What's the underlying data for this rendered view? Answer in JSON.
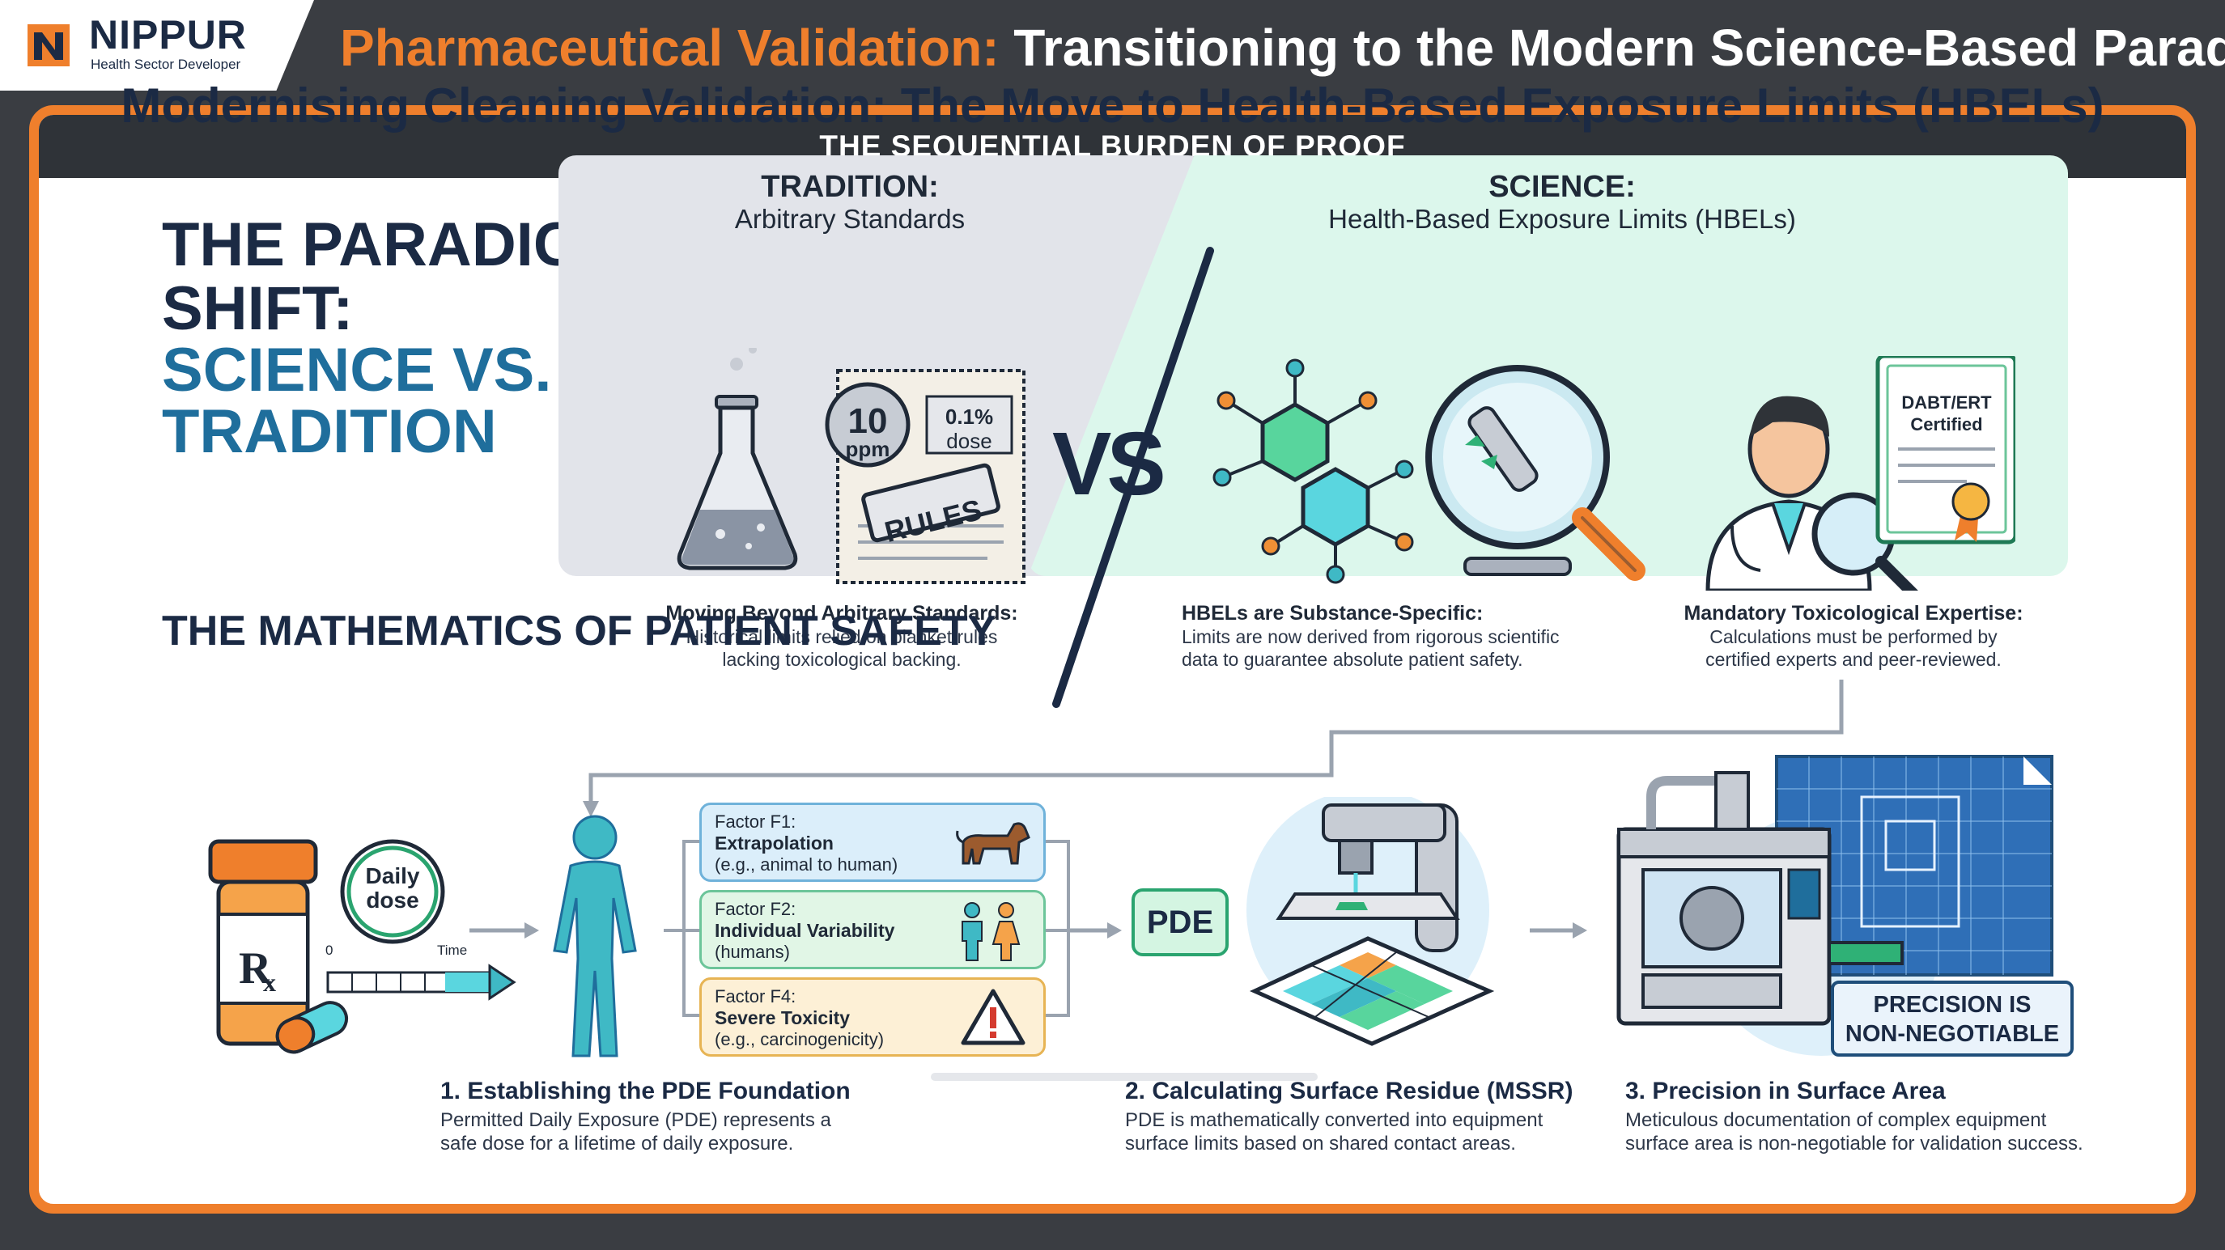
{
  "brand": {
    "name": "NIPPUR",
    "tagline": "Health Sector Developer",
    "color": "#ef7f2c"
  },
  "header": {
    "title_accent": "Pharmaceutical Validation:",
    "title_rest": " Transitioning to the Modern Science-Based Paradigm"
  },
  "band": {
    "label": "THE SEQUENTIAL BURDEN OF PROOF"
  },
  "subtitle": "Modernising Cleaning Validation: The Move to Health-Based Exposure Limits (HBELs)",
  "paradigm": {
    "line1": "THE PARADIGM",
    "line2": "SHIFT:",
    "line3": "SCIENCE VS.",
    "line4": "TRADITION"
  },
  "tradition": {
    "heading": "TRADITION:",
    "subheading": "Arbitrary Standards",
    "seal_number": "10",
    "seal_unit": "ppm",
    "dose_value": "0.1%",
    "dose_label": "dose",
    "stamp": "RULES",
    "caption_heading": "Moving Beyond Arbitrary Standards:",
    "caption_line1": "Historical limits relied on blanket rules",
    "caption_line2": "lacking toxicological backing."
  },
  "vs": "VS",
  "science": {
    "heading": "SCIENCE:",
    "subheading": "Health-Based Exposure Limits (HBELs)",
    "cert_line1": "DABT/ERT",
    "cert_line2": "Certified",
    "caption1_heading": "HBELs are Substance-Specific:",
    "caption1_line1": "Limits are now derived from rigorous scientific",
    "caption1_line2": "data to guarantee absolute patient safety.",
    "caption2_heading": "Mandatory Toxicological Expertise:",
    "caption2_line1": "Calculations must be performed by",
    "caption2_line2": "certified experts and peer-reviewed."
  },
  "math": {
    "title": "THE MATHEMATICS OF PATIENT SAFETY",
    "daily_line1": "Daily",
    "daily_line2": "dose",
    "timeline_start": "0",
    "timeline_end": "Time",
    "factors": [
      {
        "label": "Factor F1:",
        "title": "Extrapolation",
        "detail": "(e.g., animal to human)"
      },
      {
        "label": "Factor F2:",
        "title": "Individual Variability",
        "detail": "(humans)"
      },
      {
        "label": "Factor F4:",
        "title": "Severe Toxicity",
        "detail": "(e.g., carcinogenicity)"
      }
    ],
    "pde": "PDE",
    "precision_line1": "PRECISION IS",
    "precision_line2": "NON-NEGOTIABLE",
    "steps": [
      {
        "title": "1. Establishing the PDE Foundation",
        "line1": "Permitted Daily Exposure (PDE) represents a",
        "line2": "safe dose for a lifetime of daily exposure."
      },
      {
        "title": "2. Calculating Surface Residue (MSSR)",
        "line1": "PDE is mathematically converted into equipment",
        "line2": "surface limits based on shared contact areas."
      },
      {
        "title": "3. Precision in Surface Area",
        "line1": "Meticulous documentation of complex equipment",
        "line2": "surface area is non-negotiable for validation success."
      }
    ]
  }
}
